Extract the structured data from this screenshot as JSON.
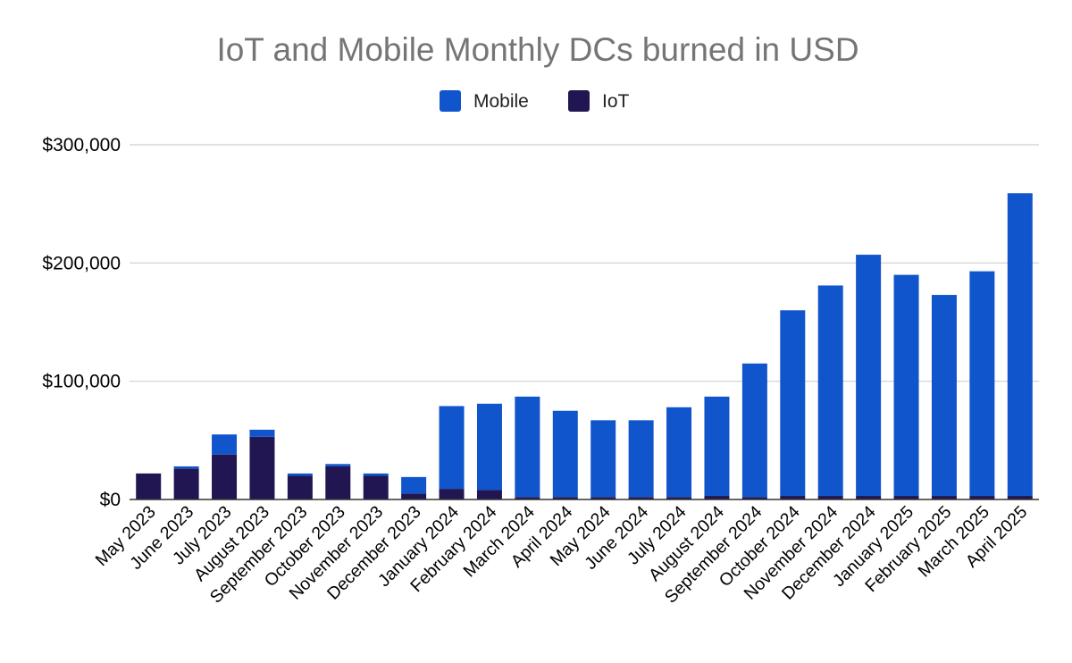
{
  "chart_data": {
    "type": "bar",
    "stacked": true,
    "title": "IoT and Mobile Monthly DCs burned in USD",
    "xlabel": "",
    "ylabel": "",
    "ylim": [
      0,
      300000
    ],
    "yticks": [
      0,
      100000,
      200000,
      300000
    ],
    "ytick_labels": [
      "$0",
      "$100,000",
      "$200,000",
      "$300,000"
    ],
    "grid": true,
    "legend_position": "top-center",
    "categories": [
      "May 2023",
      "June 2023",
      "July 2023",
      "August 2023",
      "September 2023",
      "October 2023",
      "November 2023",
      "December 2023",
      "January 2024",
      "February 2024",
      "March 2024",
      "April 2024",
      "May 2024",
      "June 2024",
      "July 2024",
      "August 2024",
      "September 2024",
      "October 2024",
      "November 2024",
      "December 2024",
      "January 2025",
      "February 2025",
      "March 2025",
      "April 2025"
    ],
    "series": [
      {
        "name": "IoT",
        "color": "#211651",
        "values": [
          22000,
          26000,
          38000,
          53000,
          20000,
          28000,
          20000,
          5000,
          9000,
          8000,
          2000,
          2000,
          2000,
          2000,
          2000,
          3000,
          2000,
          3000,
          3000,
          3000,
          3000,
          3000,
          3000,
          3000
        ]
      },
      {
        "name": "Mobile",
        "color": "#1155cc",
        "values": [
          0,
          2000,
          17000,
          6000,
          2000,
          2000,
          2000,
          14000,
          70000,
          73000,
          85000,
          73000,
          65000,
          65000,
          76000,
          84000,
          113000,
          157000,
          178000,
          204000,
          187000,
          170000,
          190000,
          256000
        ]
      }
    ],
    "legend": [
      "Mobile",
      "IoT"
    ]
  }
}
